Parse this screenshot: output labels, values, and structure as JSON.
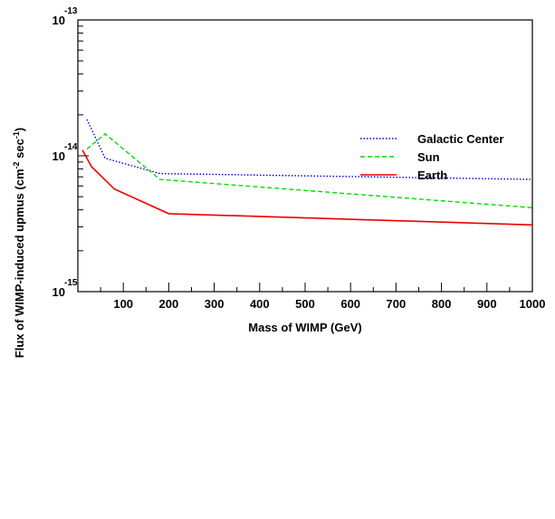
{
  "chart_data": {
    "type": "line",
    "title": "",
    "xlabel": "Mass of WIMP (GeV)",
    "ylabel_parts": [
      "Flux of WIMP-induced upmus (cm",
      "-2",
      " sec",
      "-1",
      ")"
    ],
    "xlim": [
      0,
      1000
    ],
    "ylim": [
      1e-15,
      1e-13
    ],
    "yscale": "log",
    "x_ticks": [
      100,
      200,
      300,
      400,
      500,
      600,
      700,
      800,
      900,
      1000
    ],
    "x_tick_labels": [
      "100",
      "200",
      "300",
      "400",
      "500",
      "600",
      "700",
      "800",
      "900",
      "1000"
    ],
    "y_ticks": [
      {
        "value": 1e-15,
        "base": "10",
        "exp": "-15"
      },
      {
        "value": 1e-14,
        "base": "10",
        "exp": "-14"
      },
      {
        "value": 1e-13,
        "base": "10",
        "exp": "-13"
      }
    ],
    "legend_position": "right",
    "grid": false,
    "series": [
      {
        "name": "Galactic Center",
        "style": "dotted",
        "color": "#0000cc",
        "x": [
          20,
          60,
          180,
          1000
        ],
        "y": [
          1.85e-14,
          9.6e-15,
          7.4e-15,
          6.7e-15
        ]
      },
      {
        "name": "Sun",
        "style": "dashed",
        "color": "#00dd00",
        "x": [
          20,
          60,
          180,
          1000
        ],
        "y": [
          1.12e-14,
          1.45e-14,
          6.7e-15,
          4.15e-15
        ]
      },
      {
        "name": "Earth",
        "style": "solid",
        "color": "#ee0000",
        "x": [
          10,
          30,
          80,
          200,
          1000
        ],
        "y": [
          1.1e-14,
          8.3e-15,
          5.7e-15,
          3.75e-15,
          3.1e-15
        ]
      }
    ]
  }
}
